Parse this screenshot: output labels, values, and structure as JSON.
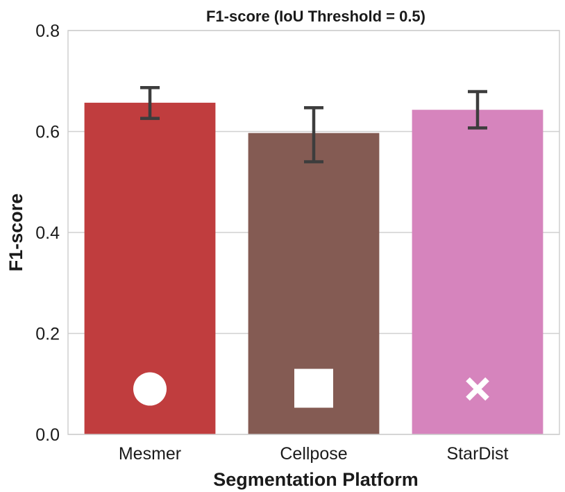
{
  "chart_data": {
    "type": "bar",
    "title": "F1-score (IoU Threshold = 0.5)",
    "xlabel": "Segmentation Platform",
    "ylabel": "F1-score",
    "ylim": [
      0,
      0.8
    ],
    "yticks": [
      "0.0",
      "0.2",
      "0.4",
      "0.6",
      "0.8"
    ],
    "grid": "horizontal",
    "categories": [
      "Mesmer",
      "Cellpose",
      "StarDist"
    ],
    "values": [
      0.657,
      0.597,
      0.643
    ],
    "error_low": [
      0.626,
      0.54,
      0.607
    ],
    "error_high": [
      0.687,
      0.647,
      0.679
    ],
    "colors": [
      "#c03d3e",
      "#845b53",
      "#d684bd"
    ],
    "markers": [
      "circle",
      "square",
      "cross"
    ],
    "marker_color": "#ffffff",
    "error_color": "#3d3d3d"
  }
}
